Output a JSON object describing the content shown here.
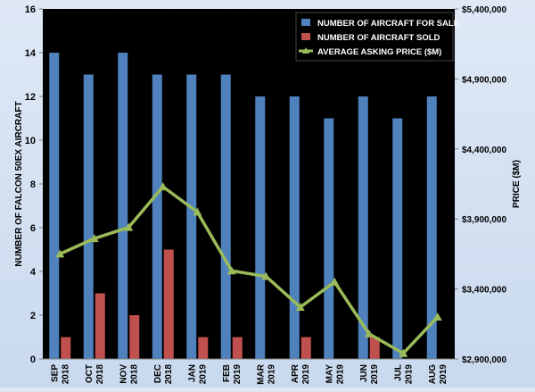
{
  "chart_data": {
    "type": "bar",
    "categories": [
      [
        "SEP",
        "2018"
      ],
      [
        "OCT",
        "2018"
      ],
      [
        "NOV",
        "2018"
      ],
      [
        "DEC",
        "2018"
      ],
      [
        "JAN",
        "2019"
      ],
      [
        "FEB",
        "2019"
      ],
      [
        "MAR",
        "2019"
      ],
      [
        "APR",
        "2019"
      ],
      [
        "MAY",
        "2019"
      ],
      [
        "JUN",
        "2019"
      ],
      [
        "JUL",
        "2019"
      ],
      [
        "AUG",
        "2019"
      ]
    ],
    "series": [
      {
        "name": "NUMBER OF AIRCRAFT FOR SALE",
        "type": "bar",
        "axis": "left",
        "color": "#4f81bd",
        "values": [
          14,
          13,
          14,
          13,
          13,
          13,
          12,
          12,
          11,
          12,
          11,
          12
        ]
      },
      {
        "name": "NUMBER OF AIRCRAFT SOLD",
        "type": "bar",
        "axis": "left",
        "color": "#c0504d",
        "values": [
          1,
          3,
          2,
          5,
          1,
          1,
          0,
          1,
          0,
          1,
          0,
          0
        ]
      },
      {
        "name": "AVERAGE ASKING PRICE ($M)",
        "type": "line",
        "axis": "right",
        "color": "#9bbb59",
        "values": [
          3650000,
          3760000,
          3840000,
          4130000,
          3950000,
          3530000,
          3490000,
          3270000,
          3450000,
          3080000,
          2940000,
          3200000
        ]
      }
    ],
    "ylabel": "NUMBER OF FALCON 50EX AIRCRAFT",
    "y2label": "PRICE ($M)",
    "ylim": [
      0,
      16
    ],
    "yticks": [
      "0",
      "2",
      "4",
      "6",
      "8",
      "10",
      "12",
      "14",
      "16"
    ],
    "y2lim": [
      2900000,
      5400000
    ],
    "y2ticks": [
      "$2,900,000",
      "$3,400,000",
      "$3,900,000",
      "$4,400,000",
      "$4,900,000",
      "$5,400,000"
    ],
    "legend_position": "top-right",
    "grid": false,
    "plot_background": "#000000"
  }
}
